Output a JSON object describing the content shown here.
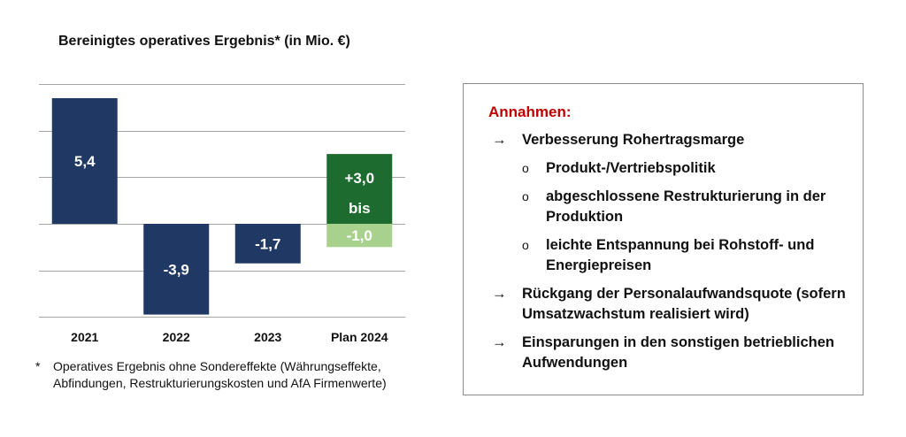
{
  "title": "Bereinigtes operatives Ergebnis* (in Mio. €)",
  "chart_data": {
    "type": "bar",
    "title": "Bereinigtes operatives Ergebnis* (in Mio. €)",
    "categories": [
      "2021",
      "2022",
      "2023",
      "Plan 2024"
    ],
    "values": [
      5.4,
      -3.9,
      -1.7,
      null
    ],
    "value_labels": [
      "5,4",
      "-3,9",
      "-1,7",
      ""
    ],
    "plan_range": {
      "category": "Plan 2024",
      "high": 3.0,
      "low": -1.0,
      "label_top": "+3,0",
      "label_mid": "bis",
      "label_bottom": "-1,0"
    },
    "ylim": [
      -3.9,
      5.4
    ],
    "grid": true,
    "colors": {
      "actual": "#1f3864",
      "plan_positive": "#1e6b2f",
      "plan_negative": "#a9d18e"
    }
  },
  "footnote": {
    "marker": "*",
    "text": "Operatives Ergebnis ohne Sondereffekte (Währungseffekte, Abfindungen, Restrukturierungskosten und AfA Firmenwerte)"
  },
  "assumptions": {
    "title": "Annahmen:",
    "title_color": "#c00000",
    "items": [
      {
        "level": 1,
        "marker": "→",
        "text": "Verbesserung Rohertragsmarge"
      },
      {
        "level": 2,
        "marker": "o",
        "text": "Produkt-/Vertriebspolitik"
      },
      {
        "level": 2,
        "marker": "o",
        "text": "abgeschlossene Restrukturierung in der Produktion"
      },
      {
        "level": 2,
        "marker": "o",
        "text": "leichte Entspannung bei Rohstoff- und Energiepreisen"
      },
      {
        "level": 1,
        "marker": "→",
        "text": "Rückgang der Personalaufwandsquote (sofern Umsatzwachstum realisiert wird)"
      },
      {
        "level": 1,
        "marker": "→",
        "text": "Einsparungen in den sonstigen betrieblichen Aufwendungen"
      }
    ]
  }
}
